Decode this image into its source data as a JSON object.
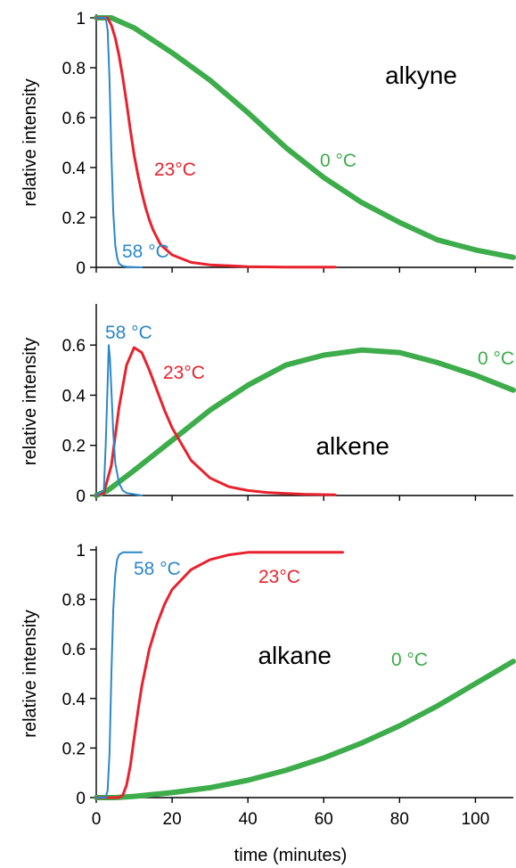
{
  "colors": {
    "c58": "#2b87c9",
    "c23": "#e8222d",
    "c0": "#3dac4a",
    "axis": "#000000"
  },
  "xlabel": "time (minutes)",
  "chart_data": [
    {
      "type": "line",
      "title": "alkyne",
      "xlabel": "",
      "ylabel": "relative intensity",
      "xlim": [
        0,
        110
      ],
      "ylim": [
        0,
        1
      ],
      "yticks": [
        "0",
        "0.2",
        "0.4",
        "0.6",
        "0.8",
        "1"
      ],
      "series": [
        {
          "name": "58 °C",
          "color_key": "c58",
          "x": [
            0,
            2.5,
            3,
            3.5,
            4,
            4.5,
            5,
            5.5,
            6,
            7,
            8,
            10,
            12
          ],
          "y": [
            1,
            1,
            0.95,
            0.75,
            0.45,
            0.22,
            0.09,
            0.04,
            0.015,
            0.005,
            0.002,
            0.001,
            0
          ]
        },
        {
          "name": "23°C",
          "color_key": "c23",
          "x": [
            0,
            3,
            4,
            5,
            6,
            7,
            8,
            9,
            10,
            11,
            12,
            13,
            14,
            15,
            17,
            20,
            25,
            30,
            40,
            50,
            63
          ],
          "y": [
            1,
            1,
            0.97,
            0.92,
            0.85,
            0.76,
            0.66,
            0.55,
            0.45,
            0.37,
            0.3,
            0.24,
            0.19,
            0.15,
            0.09,
            0.05,
            0.02,
            0.01,
            0.003,
            0.001,
            0.001
          ]
        },
        {
          "name": "0 °C",
          "color_key": "c0",
          "x": [
            0,
            4,
            10,
            20,
            30,
            40,
            50,
            60,
            70,
            80,
            90,
            100,
            110
          ],
          "y": [
            1,
            1,
            0.96,
            0.86,
            0.75,
            0.62,
            0.48,
            0.36,
            0.26,
            0.18,
            0.11,
            0.07,
            0.04
          ]
        }
      ]
    },
    {
      "type": "line",
      "title": "alkene",
      "xlabel": "",
      "ylabel": "relative intensity",
      "xlim": [
        0,
        110
      ],
      "ylim": [
        0,
        0.75
      ],
      "yticks": [
        "0",
        "0.2",
        "0.4",
        "0.6"
      ],
      "series": [
        {
          "name": "58 °C",
          "color_key": "c58",
          "x": [
            0,
            2,
            2.5,
            3,
            3.3,
            3.6,
            4,
            4.5,
            5,
            6,
            7,
            8,
            10,
            12
          ],
          "y": [
            0,
            0.02,
            0.2,
            0.45,
            0.6,
            0.55,
            0.42,
            0.25,
            0.13,
            0.05,
            0.02,
            0.01,
            0.005,
            0
          ]
        },
        {
          "name": "23°C",
          "color_key": "c23",
          "x": [
            0,
            2,
            4,
            6,
            8,
            10,
            12,
            14,
            16,
            18,
            20,
            25,
            30,
            35,
            40,
            45,
            50,
            55,
            63
          ],
          "y": [
            0,
            0.01,
            0.12,
            0.35,
            0.52,
            0.59,
            0.57,
            0.5,
            0.42,
            0.34,
            0.27,
            0.14,
            0.07,
            0.035,
            0.02,
            0.012,
            0.008,
            0.005,
            0.003
          ]
        },
        {
          "name": "0 °C",
          "color_key": "c0",
          "x": [
            0,
            3,
            10,
            20,
            30,
            40,
            50,
            60,
            70,
            80,
            90,
            100,
            110
          ],
          "y": [
            0,
            0.02,
            0.1,
            0.22,
            0.34,
            0.44,
            0.52,
            0.56,
            0.58,
            0.57,
            0.53,
            0.48,
            0.42
          ]
        }
      ]
    },
    {
      "type": "line",
      "title": "alkane",
      "xlabel": "time (minutes)",
      "ylabel": "relative intensity",
      "xlim": [
        0,
        110
      ],
      "ylim": [
        0,
        1
      ],
      "xticks": [
        "0",
        "20",
        "40",
        "60",
        "80",
        "100"
      ],
      "yticks": [
        "0",
        "0.2",
        "0.4",
        "0.6",
        "0.8",
        "1"
      ],
      "series": [
        {
          "name": "58 °C",
          "color_key": "c58",
          "x": [
            0,
            2.5,
            3,
            3.5,
            4,
            4.5,
            5,
            5.5,
            6,
            7,
            8,
            10,
            12
          ],
          "y": [
            0,
            0,
            0.03,
            0.18,
            0.5,
            0.76,
            0.9,
            0.96,
            0.98,
            0.99,
            0.99,
            0.99,
            0.99
          ]
        },
        {
          "name": "23°C",
          "color_key": "c23",
          "x": [
            0,
            6,
            7,
            8,
            9,
            10,
            11,
            12,
            14,
            16,
            18,
            20,
            25,
            30,
            35,
            40,
            45,
            50,
            55,
            60,
            65
          ],
          "y": [
            0,
            0,
            0.01,
            0.05,
            0.13,
            0.24,
            0.35,
            0.45,
            0.6,
            0.7,
            0.78,
            0.84,
            0.92,
            0.96,
            0.98,
            0.99,
            0.99,
            0.99,
            0.99,
            0.99,
            0.99
          ]
        },
        {
          "name": "0 °C",
          "color_key": "c0",
          "x": [
            0,
            5,
            10,
            20,
            30,
            40,
            50,
            60,
            70,
            80,
            90,
            100,
            110
          ],
          "y": [
            0,
            0,
            0.005,
            0.02,
            0.04,
            0.07,
            0.11,
            0.16,
            0.22,
            0.29,
            0.37,
            0.46,
            0.55
          ]
        }
      ]
    }
  ]
}
